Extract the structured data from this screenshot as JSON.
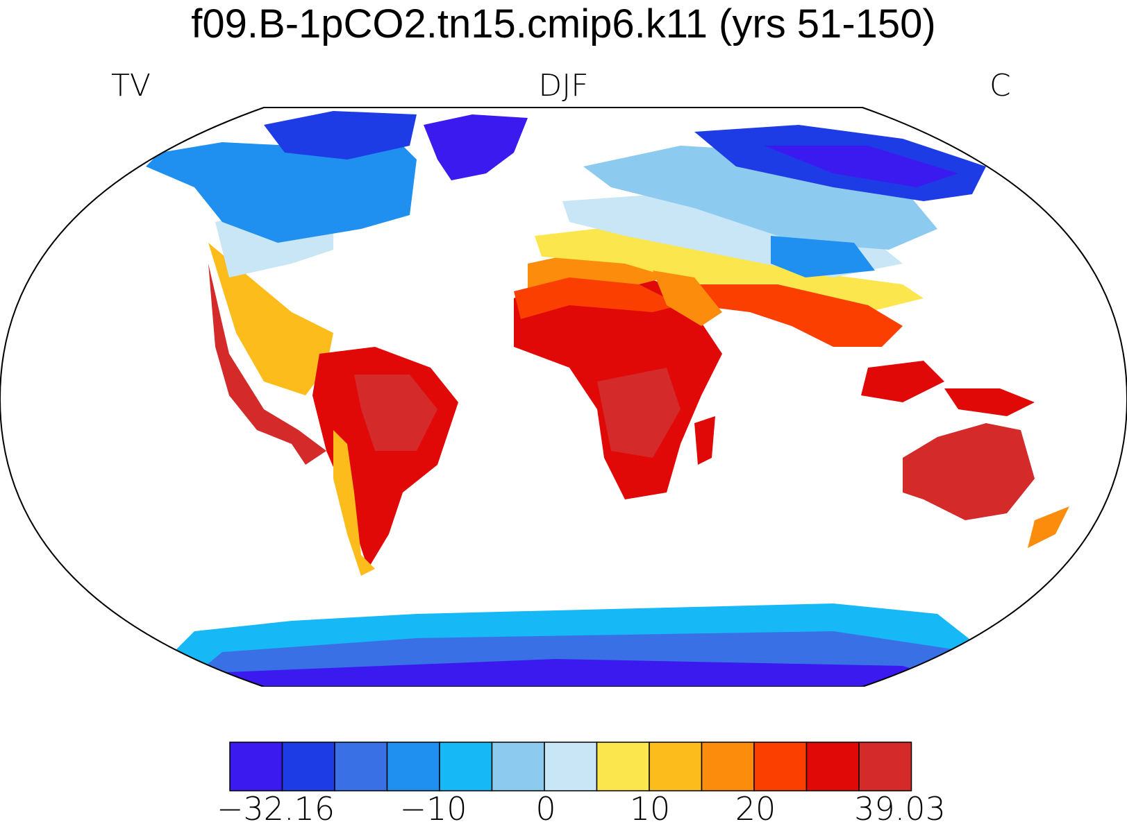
{
  "title": "f09.B-1pCO2.tn15.cmip6.k11 (yrs 51-150)",
  "labels": {
    "left": "TV",
    "center": "DJF",
    "right": "C"
  },
  "colorbar": {
    "colors": [
      "#3b1af0",
      "#1e3ce6",
      "#3a70e6",
      "#1f90f0",
      "#16b8f5",
      "#8ccbef",
      "#c8e6f5",
      "#fbe64d",
      "#fcbc1c",
      "#fc8c0c",
      "#fb3f00",
      "#e10808",
      "#d42a2a"
    ],
    "tick_labels": [
      "−32.16",
      "−10",
      "0",
      "10",
      "20",
      "39.03"
    ]
  }
}
